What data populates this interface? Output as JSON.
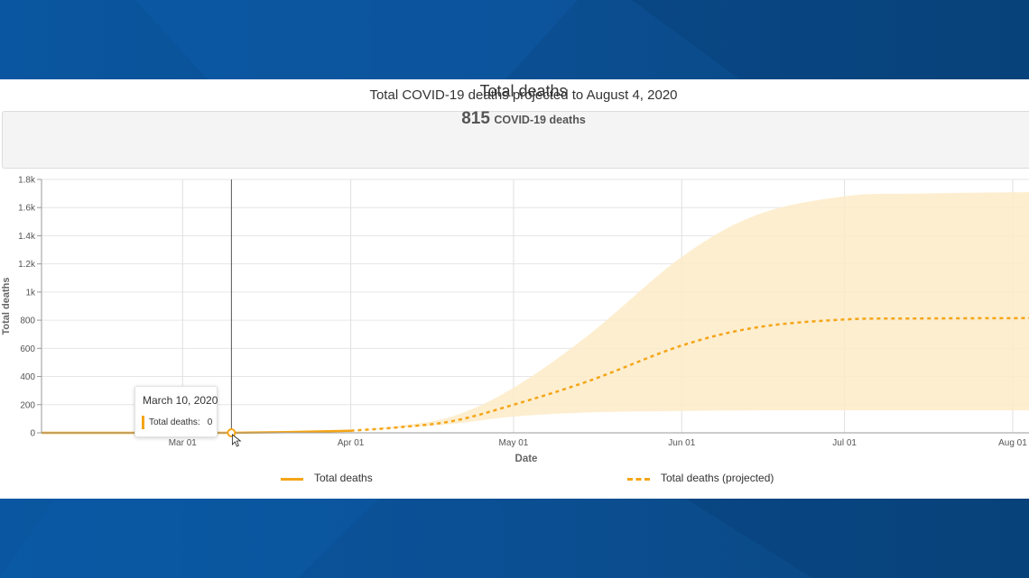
{
  "chart_data": {
    "type": "line",
    "title": "Total deaths",
    "subtitle": "Total COVID-19 deaths projected to August 4, 2020",
    "summary_count": "815",
    "summary_unit": "COVID-19 deaths",
    "xlabel": "Date",
    "ylabel": "Total deaths",
    "xlim": [
      "2020-02-04",
      "2020-08-04"
    ],
    "ylim": [
      0,
      1800
    ],
    "x_ticks": [
      "2020-03-01",
      "2020-04-01",
      "2020-05-01",
      "2020-06-01",
      "2020-07-01",
      "2020-08-01"
    ],
    "x_tick_labels": [
      "Mar 01",
      "Apr 01",
      "May 01",
      "Jun 01",
      "Jul 01",
      "Aug 01"
    ],
    "y_ticks": [
      0,
      200,
      400,
      600,
      800,
      1000,
      1200,
      1400,
      1600,
      1800
    ],
    "y_tick_labels": [
      "0",
      "200",
      "400",
      "600",
      "800",
      "1k",
      "1.2k",
      "1.4k",
      "1.6k",
      "1.8k"
    ],
    "grid": true,
    "legend_position": "bottom",
    "series": [
      {
        "name": "Total deaths",
        "style": "solid",
        "color": "#f4a516",
        "points": [
          [
            "2020-02-04",
            0
          ],
          [
            "2020-03-01",
            0
          ],
          [
            "2020-03-10",
            0
          ],
          [
            "2020-03-20",
            5
          ],
          [
            "2020-04-01",
            15
          ]
        ]
      },
      {
        "name": "Total deaths (projected)",
        "style": "dashed",
        "color": "#f4a516",
        "points": [
          [
            "2020-04-01",
            15
          ],
          [
            "2020-04-10",
            40
          ],
          [
            "2020-04-20",
            85
          ],
          [
            "2020-05-01",
            200
          ],
          [
            "2020-05-15",
            370
          ],
          [
            "2020-06-01",
            620
          ],
          [
            "2020-06-15",
            750
          ],
          [
            "2020-07-01",
            805
          ],
          [
            "2020-07-15",
            812
          ],
          [
            "2020-08-04",
            815
          ]
        ]
      }
    ],
    "uncertainty_band": {
      "color": "#fdebc8",
      "upper": [
        [
          "2020-04-01",
          15
        ],
        [
          "2020-04-10",
          50
        ],
        [
          "2020-04-20",
          120
        ],
        [
          "2020-05-01",
          320
        ],
        [
          "2020-05-15",
          700
        ],
        [
          "2020-06-01",
          1250
        ],
        [
          "2020-06-15",
          1550
        ],
        [
          "2020-07-01",
          1680
        ],
        [
          "2020-07-15",
          1700
        ],
        [
          "2020-08-04",
          1710
        ]
      ],
      "lower": [
        [
          "2020-04-01",
          15
        ],
        [
          "2020-04-10",
          35
        ],
        [
          "2020-04-20",
          65
        ],
        [
          "2020-05-01",
          115
        ],
        [
          "2020-05-15",
          145
        ],
        [
          "2020-06-01",
          155
        ],
        [
          "2020-06-15",
          160
        ],
        [
          "2020-07-01",
          160
        ],
        [
          "2020-07-15",
          160
        ],
        [
          "2020-08-04",
          160
        ]
      ]
    },
    "tooltip": {
      "date": "March 10, 2020",
      "x": "2020-03-10",
      "label": "Total deaths:",
      "value": "0"
    }
  }
}
